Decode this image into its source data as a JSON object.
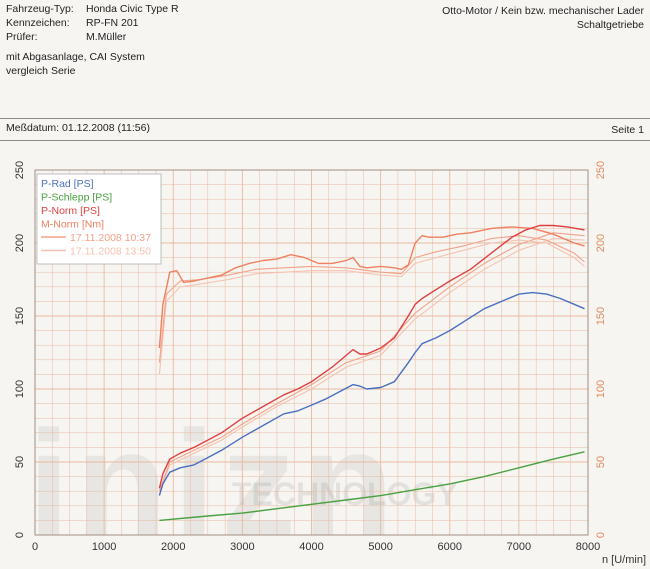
{
  "header": {
    "rows": [
      {
        "label": "Fahrzeug-Typ:",
        "value": "Honda Civic Type R"
      },
      {
        "label": "Kennzeichen:",
        "value": "RP-FN 201"
      },
      {
        "label": "Prüfer:",
        "value": "M.Müller"
      }
    ],
    "engine_line1": "Otto-Motor / Kein bzw. mechanischer Lader",
    "engine_line2": "Schaltgetriebe"
  },
  "notes": {
    "line1": "mit Abgasanlage, CAI System",
    "line2": "vergleich Serie"
  },
  "measurement": {
    "date_text": "Meßdatum: 01.12.2008 (11:56)",
    "page_text": "Seite 1"
  },
  "watermark": {
    "logo": "inizn",
    "text": "TECHNOLOGY"
  },
  "colors": {
    "grid": "#e9b9a0",
    "axis_right": "#e08a60",
    "rad": "#4a6fc0",
    "schlepp": "#4aa040",
    "norm": "#e04040",
    "mnorm": "#f08060",
    "run_a": "#f2a28a",
    "run_b": "#f6c2b0"
  },
  "chart_data": {
    "type": "line",
    "xlabel": "n [U/min]",
    "xlim": [
      0,
      8000
    ],
    "ylim_left": [
      0,
      250
    ],
    "ylim_right": [
      0,
      250
    ],
    "x_ticks": [
      "0",
      "1000",
      "2000",
      "3000",
      "4000",
      "5000",
      "6000",
      "7000",
      "8000"
    ],
    "y_ticks_left": [
      "0",
      "50",
      "100",
      "150",
      "200",
      "250"
    ],
    "y_ticks_right": [
      "0",
      "50",
      "100",
      "150",
      "200",
      "250"
    ],
    "grid": true,
    "legend_position": "top-left",
    "legend": [
      {
        "label": "P-Rad [PS]",
        "color": "#4a6fc0"
      },
      {
        "label": "P-Schlepp [PS]",
        "color": "#4aa040"
      },
      {
        "label": "P-Norm [PS]",
        "color": "#e04040"
      },
      {
        "label": "M-Norm [Nm]",
        "color": "#f08060"
      },
      {
        "label": "17.11.2008 10:37",
        "color": "#f2a28a"
      },
      {
        "label": "17.11.2008 13:50",
        "color": "#f6c2b0"
      }
    ],
    "series": [
      {
        "name": "P-Rad [PS]",
        "axis": "left",
        "color": "#4a6fc0",
        "x": [
          1800,
          1850,
          1950,
          2100,
          2300,
          2500,
          2700,
          3000,
          3300,
          3600,
          3800,
          4000,
          4200,
          4400,
          4600,
          4700,
          4800,
          5000,
          5200,
          5400,
          5500,
          5600,
          5800,
          6000,
          6200,
          6500,
          6800,
          7000,
          7200,
          7400,
          7600,
          7800,
          7950
        ],
        "y": [
          27,
          35,
          43,
          46,
          48,
          53,
          58,
          67,
          75,
          83,
          85,
          89,
          93,
          98,
          103,
          102,
          100,
          101,
          105,
          118,
          125,
          131,
          135,
          140,
          146,
          155,
          161,
          165,
          166,
          165,
          162,
          158,
          155
        ]
      },
      {
        "name": "P-Schlepp [PS]",
        "axis": "left",
        "color": "#4aa040",
        "x": [
          1800,
          2500,
          3000,
          3500,
          4000,
          4500,
          5000,
          5500,
          6000,
          6500,
          7000,
          7500,
          7950
        ],
        "y": [
          10,
          13,
          15,
          18,
          21,
          24,
          27,
          31,
          35,
          40,
          46,
          52,
          57
        ]
      },
      {
        "name": "P-Norm [PS]",
        "axis": "left",
        "color": "#e04040",
        "x": [
          1800,
          1850,
          1950,
          2100,
          2300,
          2500,
          2700,
          3000,
          3300,
          3600,
          3800,
          4000,
          4300,
          4600,
          4700,
          4800,
          5000,
          5200,
          5400,
          5500,
          5600,
          5800,
          6000,
          6300,
          6600,
          6900,
          7100,
          7300,
          7500,
          7700,
          7950
        ],
        "y": [
          32,
          42,
          52,
          56,
          60,
          65,
          70,
          80,
          88,
          96,
          100,
          105,
          115,
          127,
          124,
          124,
          128,
          135,
          150,
          158,
          162,
          168,
          174,
          182,
          193,
          204,
          209,
          212,
          212,
          211,
          209
        ]
      },
      {
        "name": "M-Norm [Nm]",
        "axis": "right",
        "color": "#f08060",
        "x": [
          1800,
          1850,
          1950,
          2050,
          2150,
          2300,
          2500,
          2700,
          2900,
          3100,
          3300,
          3500,
          3700,
          3900,
          4100,
          4300,
          4500,
          4600,
          4700,
          4800,
          5000,
          5200,
          5300,
          5400,
          5500,
          5600,
          5700,
          5900,
          6100,
          6300,
          6600,
          6900,
          7200,
          7500,
          7800,
          7950
        ],
        "y": [
          128,
          158,
          180,
          181,
          173,
          174,
          176,
          178,
          183,
          186,
          188,
          189,
          192,
          190,
          186,
          186,
          188,
          190,
          184,
          183,
          184,
          183,
          182,
          185,
          200,
          205,
          204,
          204,
          206,
          207,
          210,
          211,
          210,
          206,
          200,
          198
        ]
      },
      {
        "name": "17.11.2008 10:37",
        "axis": "right",
        "color": "#f2a28a",
        "x": [
          1800,
          1900,
          2100,
          2400,
          2800,
          3200,
          3600,
          4000,
          4500,
          5000,
          5300,
          5500,
          5800,
          6200,
          6600,
          7000,
          7400,
          7800,
          7950
        ],
        "y": [
          118,
          165,
          174,
          175,
          178,
          182,
          183,
          184,
          183,
          180,
          179,
          190,
          194,
          198,
          203,
          205,
          202,
          193,
          187
        ]
      },
      {
        "name": "17.11.2008 13:50",
        "axis": "right",
        "color": "#f6c2b0",
        "x": [
          1800,
          1900,
          2100,
          2400,
          2800,
          3200,
          3600,
          4000,
          4500,
          5000,
          5300,
          5500,
          5800,
          6200,
          6600,
          7000,
          7400,
          7800,
          7950
        ],
        "y": [
          110,
          160,
          170,
          172,
          175,
          179,
          180,
          181,
          181,
          178,
          177,
          186,
          190,
          195,
          200,
          202,
          200,
          190,
          184
        ]
      },
      {
        "name": "P-Norm 10:37",
        "axis": "left",
        "color": "#f2a28a",
        "x": [
          1800,
          1950,
          2300,
          2700,
          3000,
          3500,
          4000,
          4500,
          5000,
          5500,
          6000,
          6500,
          7000,
          7500,
          7950
        ],
        "y": [
          30,
          50,
          58,
          67,
          76,
          90,
          103,
          118,
          126,
          152,
          170,
          186,
          199,
          207,
          205
        ]
      },
      {
        "name": "P-Norm 13:50",
        "axis": "left",
        "color": "#f6c2b0",
        "x": [
          1800,
          1950,
          2300,
          2700,
          3000,
          3500,
          4000,
          4500,
          5000,
          5500,
          6000,
          6500,
          7000,
          7500,
          7950
        ],
        "y": [
          28,
          48,
          56,
          65,
          74,
          88,
          100,
          115,
          123,
          148,
          166,
          182,
          195,
          203,
          202
        ]
      }
    ]
  }
}
